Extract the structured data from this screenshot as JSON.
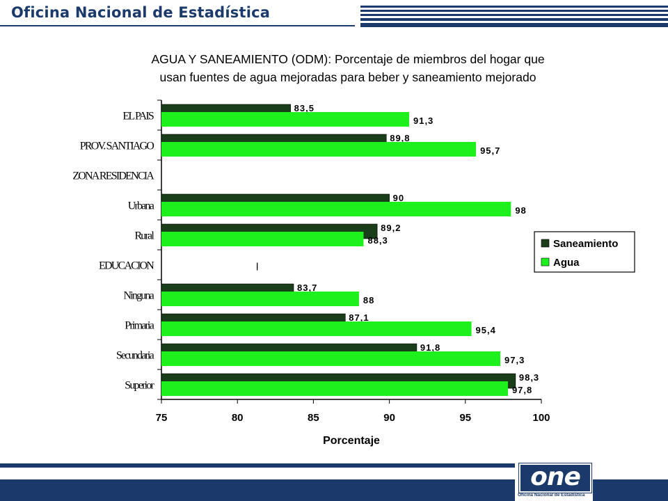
{
  "header": {
    "title": "Oficina Nacional de Estadística"
  },
  "chart_data": {
    "type": "bar",
    "orientation": "horizontal",
    "title_lines": [
      "AGUA Y SANEAMIENTO (ODM): Porcentaje de miembros del hogar que",
      "usan fuentes de agua mejoradas para beber y saneamiento mejorado"
    ],
    "categories": [
      "EL PAIS",
      "PROV. SANTIAGO",
      "ZONA RESIDENCIA",
      "Urbana",
      "Rural",
      "EDUCACION",
      "Ninguna",
      "Primaria",
      "Secundaria",
      "Superior"
    ],
    "series": [
      {
        "name": "Saneamiento",
        "color": "#1a3d1a",
        "values": [
          83.5,
          89.8,
          null,
          90,
          89.2,
          null,
          83.7,
          87.1,
          91.8,
          98.3
        ],
        "labels": [
          "83,5",
          "89,8",
          "",
          "90",
          "89,2",
          "",
          "83,7",
          "87,1",
          "91,8",
          "98,3"
        ]
      },
      {
        "name": "Agua",
        "color": "#1ef01e",
        "values": [
          91.3,
          95.7,
          null,
          98,
          88.3,
          null,
          88,
          95.4,
          97.3,
          97.8
        ],
        "labels": [
          "91,3",
          "95,7",
          "",
          "98",
          "88,3",
          "",
          "88",
          "95,4",
          "97,3",
          "97,8"
        ]
      }
    ],
    "xlabel": "Porcentaje",
    "xlim": [
      75,
      100
    ],
    "xticks": [
      "75",
      "80",
      "85",
      "90",
      "95",
      "100"
    ],
    "legend_position": "right",
    "grid": false,
    "stray_mark": "l"
  },
  "footer": {
    "logo_text": "one",
    "logo_caption": "Oficina Nacional de Estadística"
  }
}
